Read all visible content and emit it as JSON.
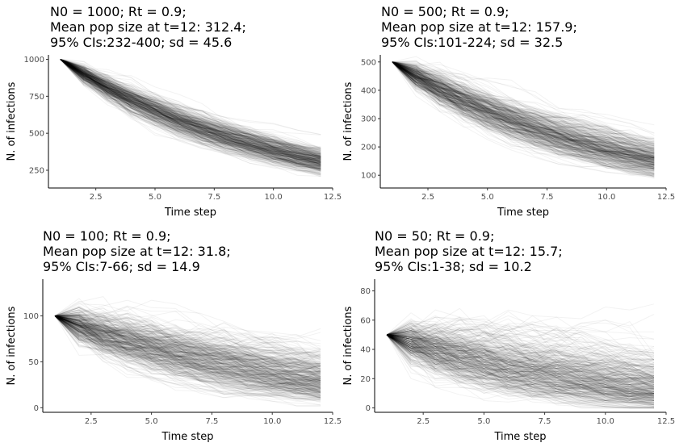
{
  "chart_data": [
    {
      "type": "line",
      "title_lines": [
        "N0 = 1000; Rt = 0.9;",
        "Mean pop size at t=12: 312.4;",
        "95% CIs:232-400; sd = 45.6"
      ],
      "xlabel": "Time step",
      "ylabel": "N. of infections",
      "N0": 1000,
      "Rt": 0.9,
      "t_max": 12,
      "xlim": [
        0.5,
        12.5
      ],
      "ylim": [
        130,
        1030
      ],
      "xticks": [
        "2.5",
        "5.0",
        "7.5",
        "10.0",
        "12.5"
      ],
      "yticks": [
        "250",
        "500",
        "750",
        "1000"
      ],
      "line_color": "#000000",
      "grid": false
    },
    {
      "type": "line",
      "title_lines": [
        "N0 = 500; Rt = 0.9;",
        "Mean pop size at t=12: 157.9;",
        "95% CIs:101-224; sd = 32.5"
      ],
      "xlabel": "Time step",
      "ylabel": "N. of infections",
      "N0": 500,
      "Rt": 0.9,
      "t_max": 12,
      "xlim": [
        0.5,
        12.5
      ],
      "ylim": [
        55,
        525
      ],
      "xticks": [
        "2.5",
        "5.0",
        "7.5",
        "10.0",
        "12.5"
      ],
      "yticks": [
        "100",
        "200",
        "300",
        "400",
        "500"
      ],
      "line_color": "#000000",
      "grid": false
    },
    {
      "type": "line",
      "title_lines": [
        "N0 = 100; Rt = 0.9;",
        "Mean pop size at t=12: 31.8;",
        "95% CIs:7-66; sd = 14.9"
      ],
      "xlabel": "Time step",
      "ylabel": "N. of infections",
      "N0": 100,
      "Rt": 0.9,
      "t_max": 12,
      "xlim": [
        0.5,
        12.5
      ],
      "ylim": [
        -5,
        140
      ],
      "xticks": [
        "2.5",
        "5.0",
        "7.5",
        "10.0",
        "12.5"
      ],
      "yticks": [
        "0",
        "50",
        "100"
      ],
      "line_color": "#000000",
      "grid": false
    },
    {
      "type": "line",
      "title_lines": [
        "N0 = 50; Rt = 0.9;",
        "Mean pop size at t=12: 15.7;",
        "95% CIs:1-38; sd = 10.2"
      ],
      "xlabel": "Time step",
      "ylabel": "N. of infections",
      "N0": 50,
      "Rt": 0.9,
      "t_max": 12,
      "xlim": [
        0.5,
        12.5
      ],
      "ylim": [
        -3,
        88
      ],
      "xticks": [
        "2.5",
        "5.0",
        "7.5",
        "10.0",
        "12.5"
      ],
      "yticks": [
        "0",
        "20",
        "40",
        "60",
        "80"
      ],
      "line_color": "#000000",
      "grid": false
    }
  ]
}
